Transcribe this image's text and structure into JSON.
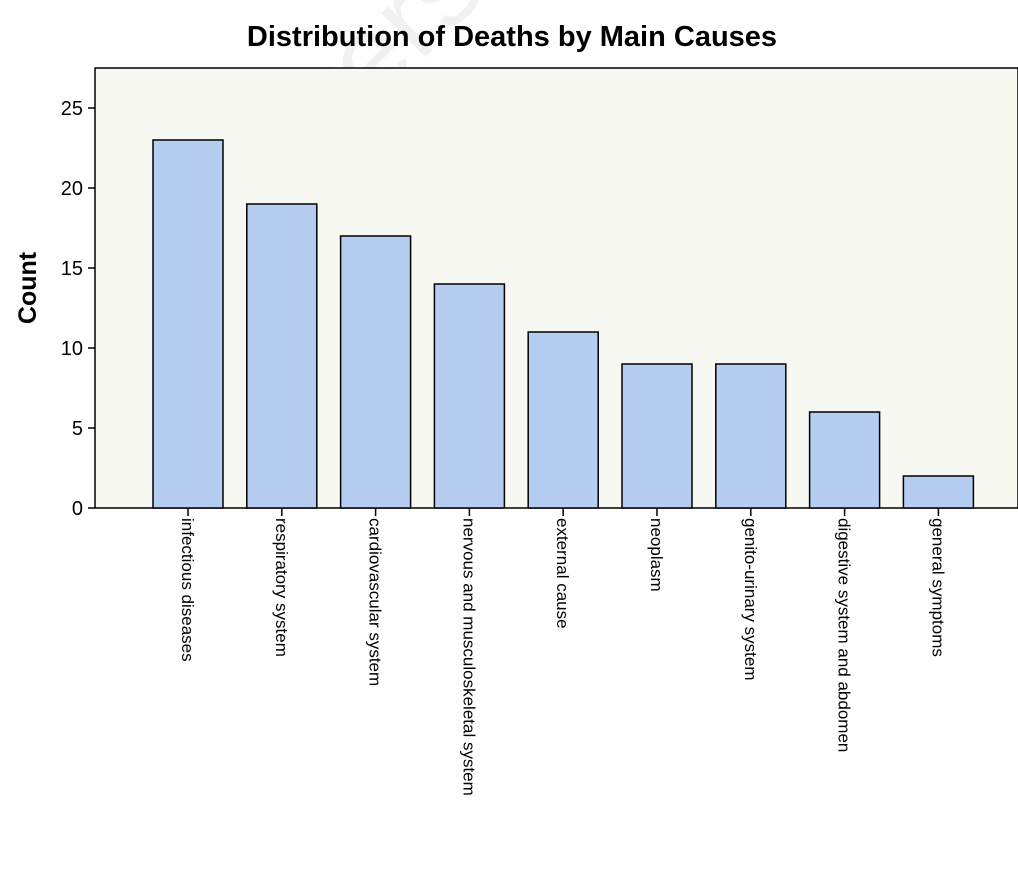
{
  "watermark": "University of Cape Town",
  "chart_data": {
    "type": "bar",
    "title": "Distribution of Deaths by Main Causes",
    "xlabel": "",
    "ylabel": "Count",
    "ylim": [
      0,
      27.5
    ],
    "yticks": [
      0,
      5,
      10,
      15,
      20,
      25
    ],
    "categories": [
      "infectious diseases",
      "respiratory system",
      "cardiovascular system",
      "nervous and musculoskeletal system",
      "external cause",
      "neoplasm",
      "genito-urinary system",
      "digestive system and abdomen",
      "general symptoms"
    ],
    "values": [
      23,
      19,
      17,
      14,
      11,
      9,
      9,
      6,
      2
    ],
    "grid": false,
    "legend": "none",
    "colors": {
      "bar_fill": "#b4cdf0",
      "bar_stroke": "#000000",
      "plot_background": "#f8f8f2",
      "axis": "#000000"
    }
  }
}
